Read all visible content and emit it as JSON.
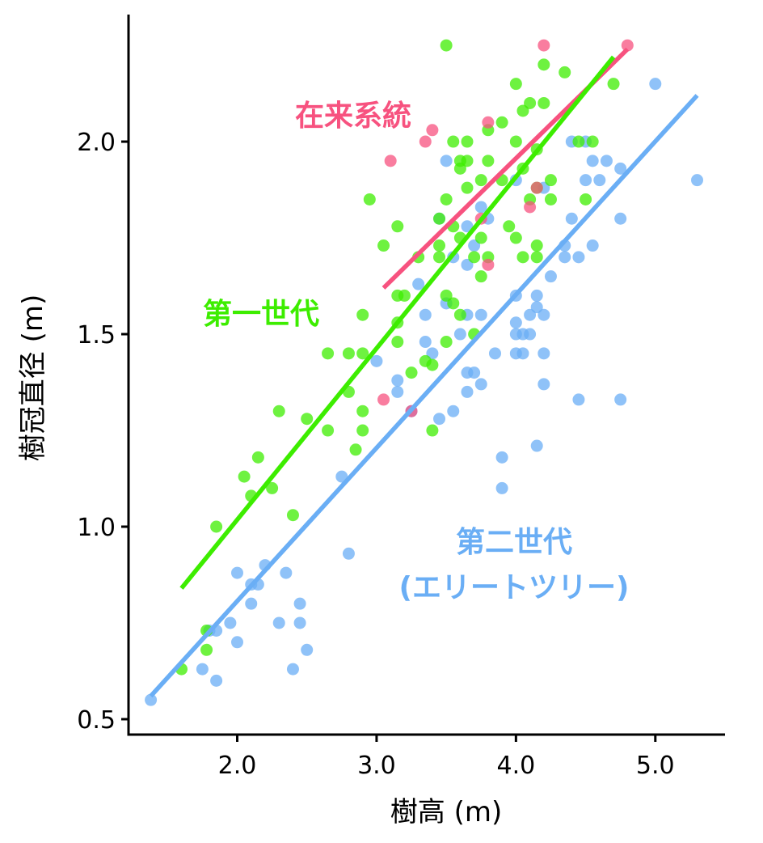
{
  "chart_data": {
    "type": "scatter",
    "xlabel": "樹高 (m)",
    "ylabel": "樹冠直径 (m)",
    "xlim": [
      1.22,
      5.5
    ],
    "ylim": [
      0.46,
      2.33
    ],
    "xticks": [
      2.0,
      3.0,
      4.0,
      5.0
    ],
    "xtick_labels": [
      "2.0",
      "3.0",
      "4.0",
      "5.0"
    ],
    "yticks": [
      0.5,
      1.0,
      1.5,
      2.0
    ],
    "ytick_labels": [
      "0.5",
      "1.0",
      "1.5",
      "2.0"
    ],
    "grid": false,
    "legend": "none",
    "series": [
      {
        "name": "在来系統",
        "color": "#f7527f",
        "labels": [
          "在来系統"
        ],
        "fit_line": [
          [
            3.05,
            1.62
          ],
          [
            4.8,
            2.24
          ]
        ],
        "points": [
          [
            3.1,
            1.95
          ],
          [
            3.35,
            2.0
          ],
          [
            3.4,
            2.03
          ],
          [
            3.8,
            2.05
          ],
          [
            4.2,
            2.25
          ],
          [
            4.8,
            2.25
          ],
          [
            4.15,
            1.88
          ],
          [
            4.1,
            1.83
          ],
          [
            3.75,
            1.8
          ],
          [
            3.8,
            1.68
          ],
          [
            3.05,
            1.33
          ],
          [
            3.25,
            1.3
          ]
        ]
      },
      {
        "name": "第一世代",
        "color": "#3ded00",
        "labels": [
          "第一世代"
        ],
        "fit_line": [
          [
            1.6,
            0.84
          ],
          [
            4.7,
            2.22
          ]
        ],
        "points": [
          [
            1.6,
            0.63
          ],
          [
            1.78,
            0.73
          ],
          [
            1.78,
            0.68
          ],
          [
            1.85,
            1.0
          ],
          [
            2.05,
            1.13
          ],
          [
            2.1,
            1.08
          ],
          [
            2.15,
            1.18
          ],
          [
            2.25,
            1.1
          ],
          [
            2.3,
            1.3
          ],
          [
            2.4,
            1.03
          ],
          [
            2.5,
            1.28
          ],
          [
            2.65,
            1.25
          ],
          [
            2.65,
            1.45
          ],
          [
            2.8,
            1.35
          ],
          [
            2.8,
            1.45
          ],
          [
            2.85,
            1.2
          ],
          [
            2.9,
            1.25
          ],
          [
            2.9,
            1.3
          ],
          [
            2.9,
            1.45
          ],
          [
            2.9,
            1.55
          ],
          [
            2.95,
            1.85
          ],
          [
            3.05,
            1.73
          ],
          [
            3.15,
            1.78
          ],
          [
            3.15,
            1.6
          ],
          [
            3.15,
            1.53
          ],
          [
            3.15,
            1.48
          ],
          [
            3.2,
            1.6
          ],
          [
            3.25,
            1.4
          ],
          [
            3.3,
            1.7
          ],
          [
            3.35,
            1.43
          ],
          [
            3.4,
            1.42
          ],
          [
            3.4,
            1.25
          ],
          [
            3.45,
            1.73
          ],
          [
            3.45,
            1.7
          ],
          [
            3.45,
            1.8
          ],
          [
            3.5,
            2.25
          ],
          [
            3.5,
            1.85
          ],
          [
            3.5,
            1.6
          ],
          [
            3.5,
            1.48
          ],
          [
            3.55,
            2.0
          ],
          [
            3.55,
            1.78
          ],
          [
            3.55,
            1.58
          ],
          [
            3.6,
            1.93
          ],
          [
            3.6,
            1.95
          ],
          [
            3.6,
            1.75
          ],
          [
            3.6,
            1.55
          ],
          [
            3.65,
            1.88
          ],
          [
            3.65,
            2.0
          ],
          [
            3.65,
            1.95
          ],
          [
            3.7,
            1.7
          ],
          [
            3.7,
            1.5
          ],
          [
            3.75,
            1.9
          ],
          [
            3.75,
            1.75
          ],
          [
            3.75,
            1.65
          ],
          [
            3.8,
            2.03
          ],
          [
            3.8,
            1.95
          ],
          [
            3.8,
            1.7
          ],
          [
            3.9,
            1.9
          ],
          [
            3.9,
            2.05
          ],
          [
            3.95,
            1.78
          ],
          [
            4.0,
            2.0
          ],
          [
            4.0,
            1.75
          ],
          [
            4.0,
            2.15
          ],
          [
            4.05,
            1.93
          ],
          [
            4.05,
            2.08
          ],
          [
            4.05,
            1.7
          ],
          [
            4.1,
            2.1
          ],
          [
            4.1,
            1.85
          ],
          [
            4.15,
            1.73
          ],
          [
            4.15,
            1.7
          ],
          [
            4.15,
            1.98
          ],
          [
            4.2,
            2.2
          ],
          [
            4.2,
            2.1
          ],
          [
            4.25,
            1.9
          ],
          [
            4.25,
            1.85
          ],
          [
            4.35,
            2.18
          ],
          [
            4.45,
            2.0
          ],
          [
            4.5,
            1.85
          ],
          [
            4.55,
            2.0
          ],
          [
            4.7,
            2.15
          ],
          [
            4.15,
            1.88
          ]
        ]
      },
      {
        "name": "第二世代 (エリートツリー)",
        "color": "#6aaef5",
        "labels": [
          "第二世代",
          "(エリートツリー)"
        ],
        "fit_line": [
          [
            1.38,
            0.56
          ],
          [
            5.3,
            2.12
          ]
        ],
        "points": [
          [
            1.38,
            0.55
          ],
          [
            1.75,
            0.63
          ],
          [
            1.8,
            0.73
          ],
          [
            1.85,
            0.6
          ],
          [
            1.85,
            0.73
          ],
          [
            1.95,
            0.75
          ],
          [
            2.0,
            0.88
          ],
          [
            2.0,
            0.7
          ],
          [
            2.1,
            0.8
          ],
          [
            2.1,
            0.85
          ],
          [
            2.15,
            0.85
          ],
          [
            2.2,
            0.9
          ],
          [
            2.3,
            0.75
          ],
          [
            2.35,
            0.88
          ],
          [
            2.4,
            0.63
          ],
          [
            2.45,
            0.8
          ],
          [
            2.45,
            0.75
          ],
          [
            2.5,
            0.68
          ],
          [
            2.75,
            1.13
          ],
          [
            2.8,
            0.93
          ],
          [
            3.0,
            1.43
          ],
          [
            3.15,
            1.38
          ],
          [
            3.15,
            1.35
          ],
          [
            3.25,
            1.3
          ],
          [
            3.3,
            1.63
          ],
          [
            3.35,
            1.55
          ],
          [
            3.35,
            1.48
          ],
          [
            3.4,
            1.45
          ],
          [
            3.45,
            1.28
          ],
          [
            3.45,
            1.8
          ],
          [
            3.5,
            1.95
          ],
          [
            3.5,
            1.58
          ],
          [
            3.55,
            1.3
          ],
          [
            3.55,
            1.7
          ],
          [
            3.6,
            1.5
          ],
          [
            3.65,
            1.68
          ],
          [
            3.65,
            1.78
          ],
          [
            3.65,
            1.55
          ],
          [
            3.65,
            1.4
          ],
          [
            3.65,
            1.35
          ],
          [
            3.7,
            1.73
          ],
          [
            3.7,
            1.4
          ],
          [
            3.75,
            1.83
          ],
          [
            3.75,
            1.55
          ],
          [
            3.75,
            1.37
          ],
          [
            3.8,
            1.8
          ],
          [
            3.85,
            1.45
          ],
          [
            3.9,
            1.18
          ],
          [
            3.9,
            1.1
          ],
          [
            4.0,
            1.9
          ],
          [
            4.0,
            1.6
          ],
          [
            4.0,
            1.53
          ],
          [
            4.0,
            1.5
          ],
          [
            4.0,
            1.45
          ],
          [
            4.05,
            1.5
          ],
          [
            4.05,
            1.45
          ],
          [
            4.1,
            1.5
          ],
          [
            4.1,
            1.55
          ],
          [
            4.15,
            1.6
          ],
          [
            4.15,
            1.57
          ],
          [
            4.15,
            1.21
          ],
          [
            4.2,
            1.88
          ],
          [
            4.2,
            1.55
          ],
          [
            4.2,
            1.45
          ],
          [
            4.2,
            1.37
          ],
          [
            4.25,
            1.65
          ],
          [
            4.35,
            1.7
          ],
          [
            4.35,
            1.73
          ],
          [
            4.4,
            1.8
          ],
          [
            4.4,
            2.0
          ],
          [
            4.45,
            1.7
          ],
          [
            4.45,
            1.33
          ],
          [
            4.5,
            1.9
          ],
          [
            4.5,
            2.0
          ],
          [
            4.55,
            1.95
          ],
          [
            4.55,
            1.73
          ],
          [
            4.6,
            1.9
          ],
          [
            4.65,
            1.95
          ],
          [
            4.75,
            1.93
          ],
          [
            4.75,
            1.8
          ],
          [
            4.75,
            1.33
          ],
          [
            5.0,
            2.15
          ],
          [
            5.3,
            1.9
          ]
        ]
      }
    ]
  }
}
